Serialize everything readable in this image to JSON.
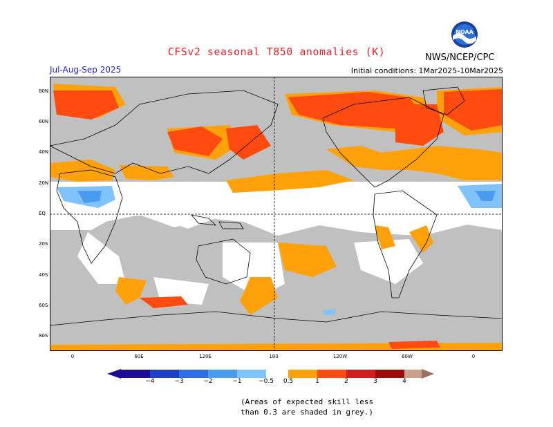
{
  "title": "CFSv2 seasonal T850 anomalies (K)",
  "period": "Jul-Aug-Sep 2025",
  "initial_conditions": "Initial conditions: 1Mar2025-10Mar2025",
  "agency": "NWS/NCEP/CPC",
  "logo_text": "NOAA",
  "map": {
    "lat_labels": [
      "80N",
      "60N",
      "40N",
      "20N",
      "EQ",
      "20S",
      "40S",
      "60S",
      "80S"
    ],
    "lon_labels": [
      "0",
      "60E",
      "120E",
      "180",
      "120W",
      "60W",
      "0"
    ],
    "grey_meaning": "skill less than 0.3"
  },
  "colors": {
    "grey": "#c0c0c0",
    "white": "#ffffff",
    "neg4": "#1a0c96",
    "neg3": "#1f3fc8",
    "neg2": "#2c6fe6",
    "neg1": "#4a9cf0",
    "neg05": "#80c2fb",
    "pos05": "#ffa10a",
    "pos1": "#ff4a10",
    "pos2": "#d21e1e",
    "pos3": "#a00a0a",
    "pos4": "#c8a08c",
    "pos5": "#9c6e5e"
  },
  "colorbar": {
    "ticks": [
      "−4",
      "−3",
      "−2",
      "−1",
      "−0.5",
      "0.5",
      "1",
      "2",
      "3",
      "4"
    ]
  },
  "note_line1": "(Areas of expected skill less",
  "note_line2": "than 0.3 are shaded in grey.)"
}
